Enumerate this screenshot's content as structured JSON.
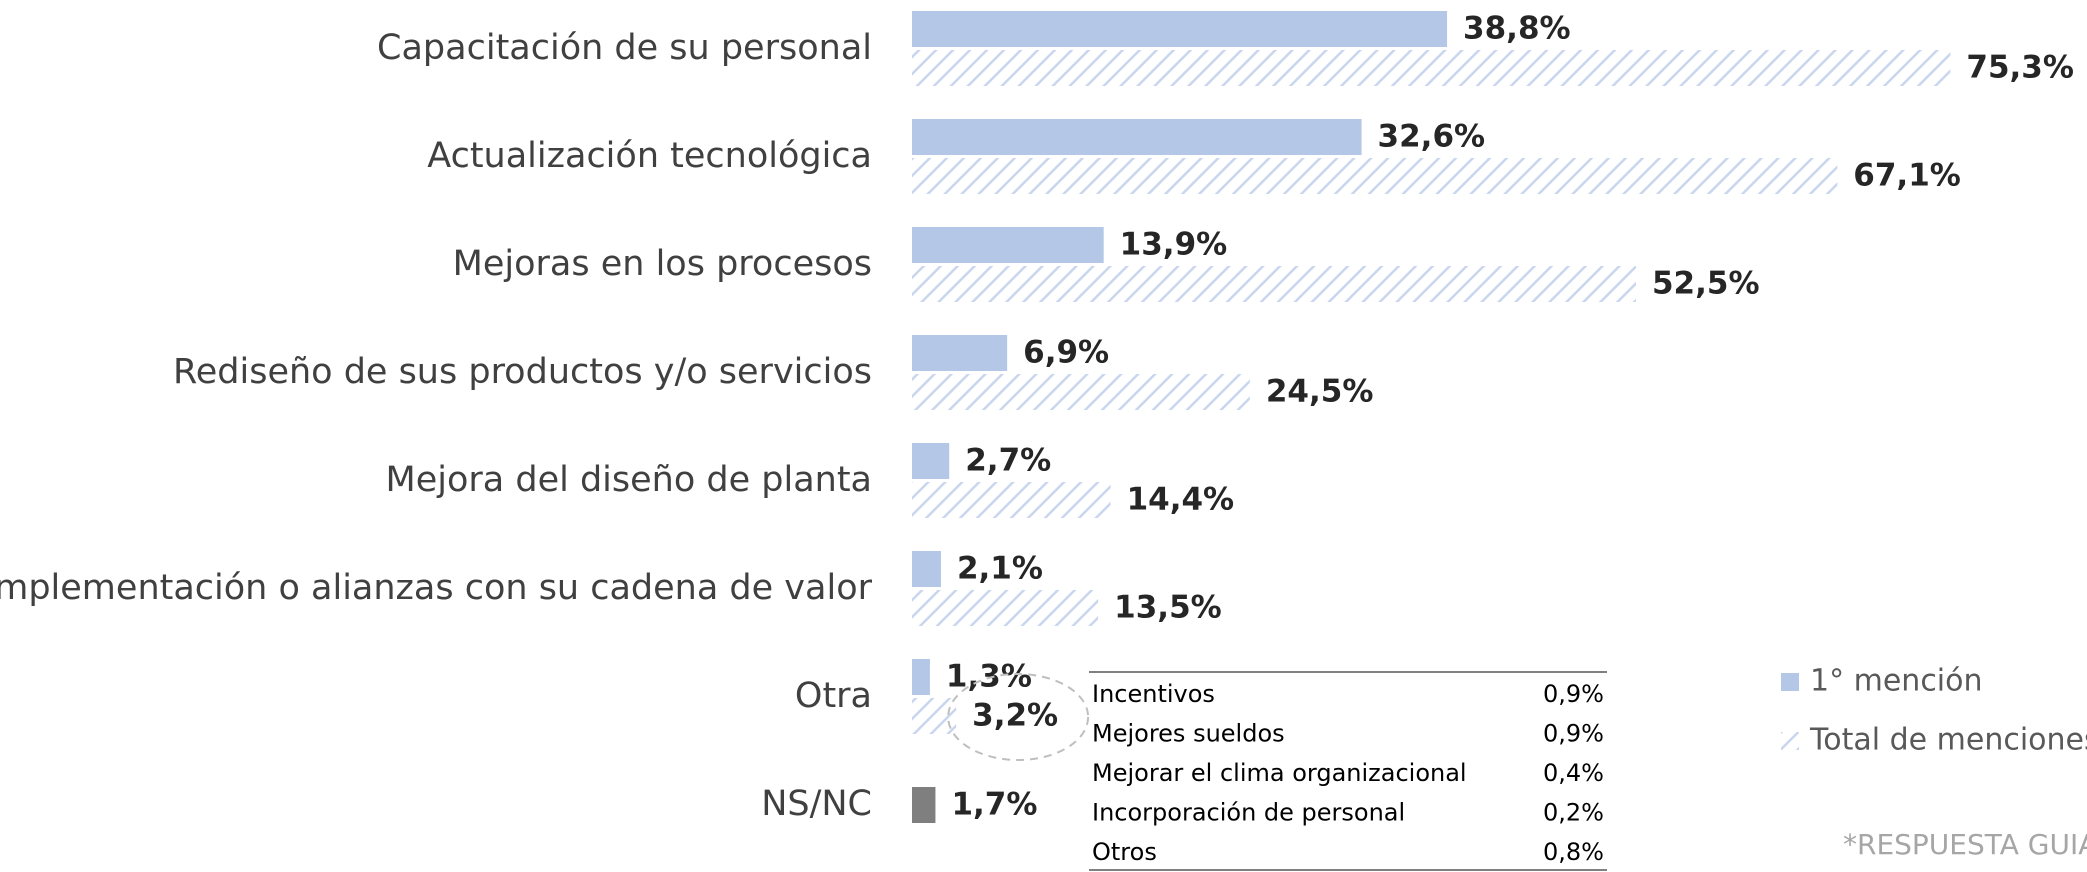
{
  "chart_data": {
    "type": "barh",
    "categories": [
      "Capacitación de su personal",
      "Actualización tecnológica",
      "Mejoras en los procesos",
      "Rediseño de sus productos y/o servicios",
      "Mejora del diseño de planta",
      "Complementación o alianzas con su cadena de valor",
      "Otra",
      "NS/NC"
    ],
    "series": [
      {
        "name": "1° mención",
        "color": "#b4c7e7",
        "colors": [
          "#b4c7e7",
          "#b4c7e7",
          "#b4c7e7",
          "#b4c7e7",
          "#b4c7e7",
          "#b4c7e7",
          "#b4c7e7",
          "#7f7f7f"
        ],
        "values": [
          38.8,
          32.6,
          13.9,
          6.9,
          2.7,
          2.1,
          1.3,
          1.7
        ],
        "value_labels": [
          "38,8%",
          "32,6%",
          "13,9%",
          "6,9%",
          "2,7%",
          "2,1%",
          "1,3%",
          "1,7%"
        ]
      },
      {
        "name": "Total de menciones",
        "color": "#c9d6ee",
        "pattern": "hatch",
        "values": [
          75.3,
          67.1,
          52.5,
          24.5,
          14.4,
          13.5,
          3.2,
          null
        ],
        "value_labels": [
          "75,3%",
          "67,1%",
          "52,5%",
          "24,5%",
          "14,4%",
          "13,5%",
          "3,2%",
          null
        ]
      }
    ],
    "xlim": [
      0,
      100
    ],
    "legend": "right",
    "table": {
      "rows": [
        [
          "Incentivos",
          "0,9%"
        ],
        [
          "Mejores sueldos",
          "0,9%"
        ],
        [
          "Mejorar el clima organizacional",
          "0,4%"
        ],
        [
          "Incorporación de personal",
          "0,2%"
        ],
        [
          "Otros",
          "0,8%"
        ]
      ]
    },
    "note": "*RESPUESTA GUIA"
  }
}
